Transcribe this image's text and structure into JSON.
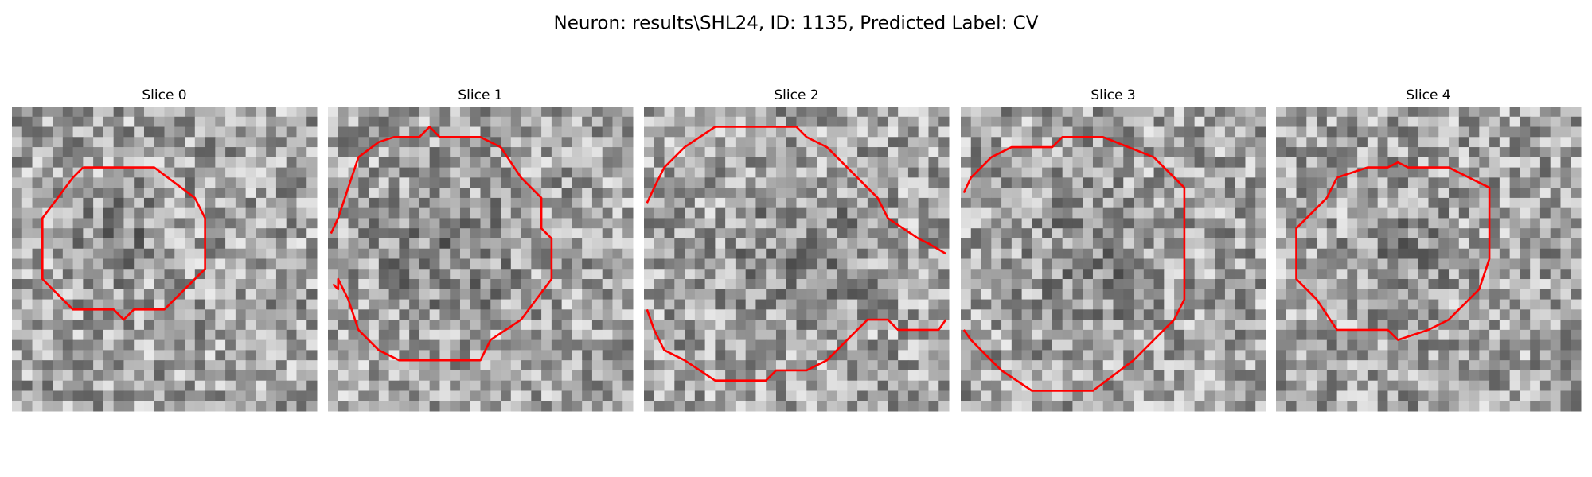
{
  "title": "Neuron: results\\SHL24, ID: 1135, Predicted Label: CV",
  "panels": [
    {
      "title": "Slice 0"
    },
    {
      "title": "Slice 1"
    },
    {
      "title": "Slice 2"
    },
    {
      "title": "Slice 3"
    },
    {
      "title": "Slice 4"
    }
  ]
}
